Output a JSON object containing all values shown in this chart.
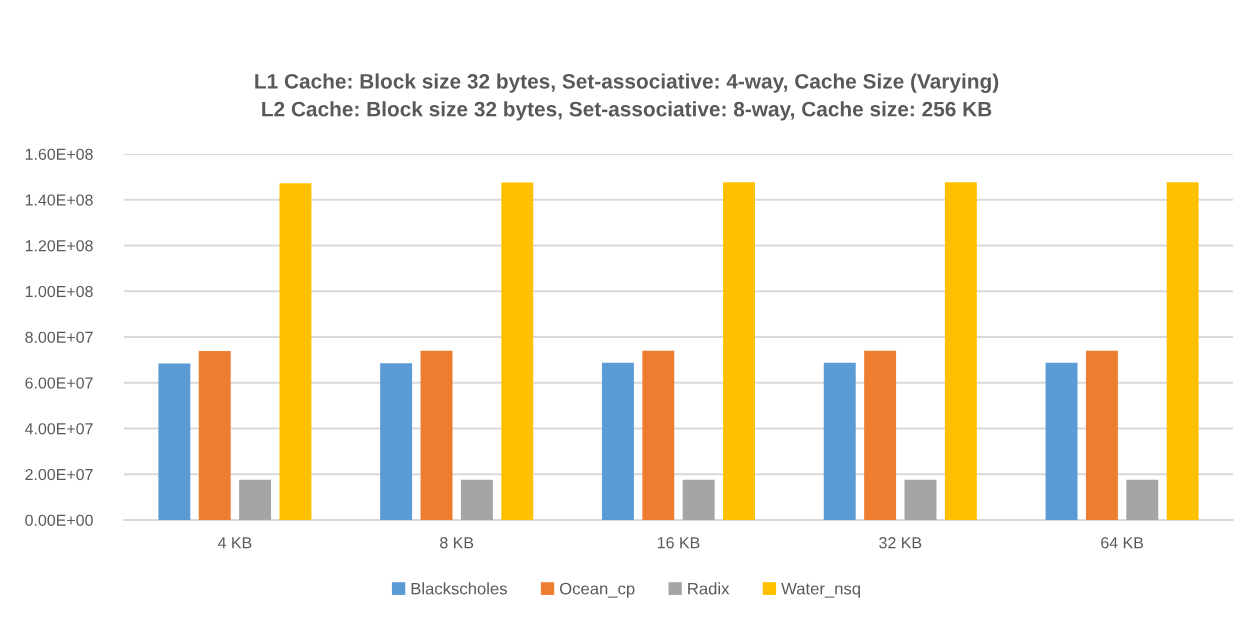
{
  "chart_data": {
    "type": "bar",
    "title": "L1 Cache: Block size 32 bytes, Set-associative: 4-way, Cache Size (Varying)\nL2 Cache: Block size 32 bytes, Set-associative: 8-way, Cache size: 256 KB",
    "categories": [
      "4 KB",
      "8 KB",
      "16 KB",
      "32 KB",
      "64 KB"
    ],
    "series": [
      {
        "name": "Blackscholes",
        "color": "#5b9bd5",
        "values": [
          68400000,
          68500000,
          68700000,
          68700000,
          68700000
        ]
      },
      {
        "name": "Ocean_cp",
        "color": "#ed7d31",
        "values": [
          73900000,
          74000000,
          74000000,
          74000000,
          74000000
        ]
      },
      {
        "name": "Radix",
        "color": "#a5a5a5",
        "values": [
          17600000,
          17600000,
          17600000,
          17600000,
          17600000
        ]
      },
      {
        "name": "Water_nsq",
        "color": "#ffc000",
        "values": [
          147200000,
          147500000,
          147600000,
          147600000,
          147600000
        ]
      }
    ],
    "ylim": [
      0,
      160000000
    ],
    "yticks": [
      {
        "value": 0,
        "label": "0.00E+00"
      },
      {
        "value": 20000000,
        "label": "2.00E+07"
      },
      {
        "value": 40000000,
        "label": "4.00E+07"
      },
      {
        "value": 60000000,
        "label": "6.00E+07"
      },
      {
        "value": 80000000,
        "label": "8.00E+07"
      },
      {
        "value": 100000000,
        "label": "1.00E+08"
      },
      {
        "value": 120000000,
        "label": "1.20E+08"
      },
      {
        "value": 140000000,
        "label": "1.40E+08"
      },
      {
        "value": 160000000,
        "label": "1.60E+08"
      }
    ],
    "grid": "y",
    "legend": "bottom"
  }
}
